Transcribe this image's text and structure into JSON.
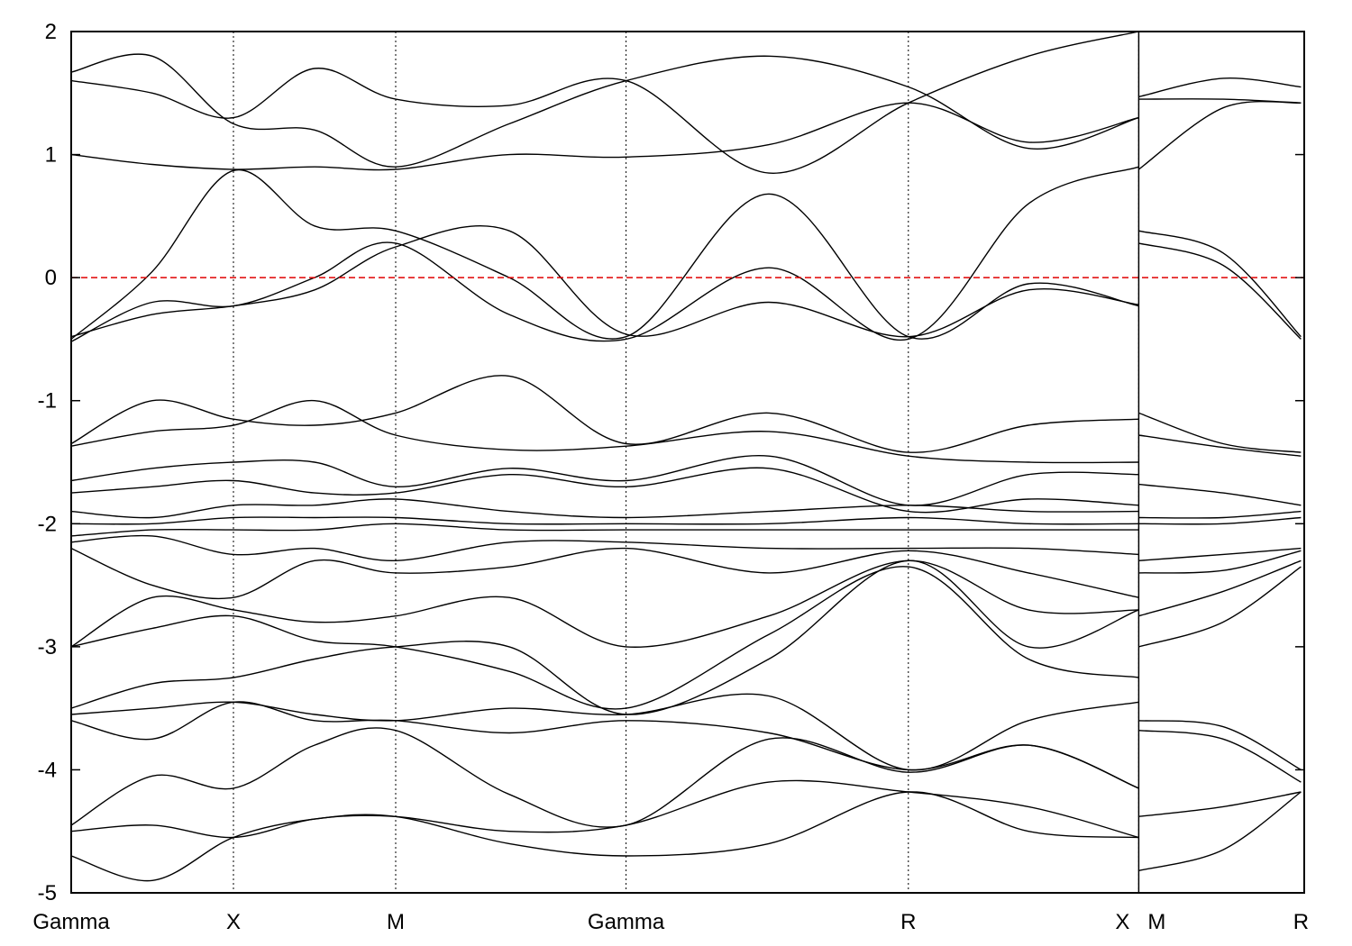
{
  "chart_data": {
    "type": "line",
    "title": "",
    "xlabel": "",
    "ylabel": "",
    "ylim": [
      -5,
      2
    ],
    "yticks": [
      2,
      1,
      0,
      -1,
      -2,
      -3,
      -4,
      -5
    ],
    "ytick_labels": [
      "2",
      "1",
      "0",
      "-1",
      "-2",
      "-3",
      "-4",
      "-5"
    ],
    "xlim": [
      0,
      7.6
    ],
    "k_points": [
      {
        "label": "Gamma",
        "x": 0
      },
      {
        "label": "X",
        "x": 1.0
      },
      {
        "label": "M",
        "x": 2.0
      },
      {
        "label": "Gamma",
        "x": 3.42
      },
      {
        "label": "R",
        "x": 5.16
      },
      {
        "label": "X",
        "x": 6.58
      },
      {
        "label": "M",
        "x": 6.58
      },
      {
        "label": "R",
        "x": 7.58
      }
    ],
    "segment_break_x": 6.58,
    "grid": "vertical dotted lines at high-symmetry points",
    "fermi_level": {
      "y": 0,
      "color": "#e00000",
      "style": "dashed"
    },
    "line_color": "#000000",
    "series": [
      {
        "x": [
          0,
          0.5,
          1.0,
          1.5,
          2.0,
          2.7,
          3.42,
          4.3,
          5.16,
          5.9,
          6.58
        ],
        "y": [
          -0.5,
          0.05,
          0.87,
          0.42,
          0.38,
          0.0,
          -0.48,
          0.68,
          -0.48,
          -0.05,
          -0.23
        ]
      },
      {
        "x": [
          0,
          0.5,
          1.0,
          1.5,
          2.0,
          2.7,
          3.42,
          4.3,
          5.16,
          5.9,
          6.58
        ],
        "y": [
          -0.52,
          -0.2,
          -0.23,
          0.0,
          0.28,
          -0.3,
          -0.5,
          0.08,
          -0.5,
          0.6,
          0.9
        ]
      },
      {
        "x": [
          0,
          0.5,
          1.0,
          1.5,
          2.0,
          2.7,
          3.42,
          4.3,
          5.16,
          5.9,
          6.58
        ],
        "y": [
          -0.48,
          -0.3,
          -0.23,
          -0.1,
          0.25,
          0.38,
          -0.46,
          -0.2,
          -0.48,
          -0.1,
          -0.22
        ]
      },
      {
        "x": [
          0,
          0.5,
          1.0,
          1.5,
          2.0,
          2.7,
          3.42,
          4.3,
          5.16,
          5.9,
          6.58
        ],
        "y": [
          1.0,
          0.92,
          0.88,
          0.9,
          0.88,
          1.0,
          0.98,
          1.08,
          1.42,
          1.1,
          1.3
        ]
      },
      {
        "x": [
          0,
          0.5,
          1.0,
          1.5,
          2.0,
          2.7,
          3.42,
          4.3,
          5.16,
          5.9,
          6.58
        ],
        "y": [
          1.6,
          1.5,
          1.3,
          1.7,
          1.45,
          1.4,
          1.6,
          0.85,
          1.42,
          1.8,
          2.0
        ]
      },
      {
        "x": [
          0,
          0.5,
          1.0,
          1.5,
          2.0,
          2.7,
          3.42,
          4.3,
          5.16,
          5.9,
          6.58
        ],
        "y": [
          1.67,
          1.8,
          1.25,
          1.2,
          0.9,
          1.25,
          1.6,
          1.8,
          1.55,
          1.05,
          1.3
        ]
      },
      {
        "x": [
          0,
          0.5,
          1.0,
          1.5,
          2.0,
          2.7,
          3.42,
          4.3,
          5.16,
          5.9,
          6.58
        ],
        "y": [
          -1.35,
          -1.0,
          -1.15,
          -1.2,
          -1.1,
          -0.8,
          -1.35,
          -1.1,
          -1.42,
          -1.2,
          -1.15
        ]
      },
      {
        "x": [
          0,
          0.5,
          1.0,
          1.5,
          2.0,
          2.7,
          3.42,
          4.3,
          5.16,
          5.9,
          6.58
        ],
        "y": [
          -1.37,
          -1.25,
          -1.2,
          -1.0,
          -1.28,
          -1.4,
          -1.37,
          -1.25,
          -1.45,
          -1.5,
          -1.5
        ]
      },
      {
        "x": [
          0,
          0.5,
          1.0,
          1.5,
          2.0,
          2.7,
          3.42,
          4.3,
          5.16,
          5.9,
          6.58
        ],
        "y": [
          -1.65,
          -1.55,
          -1.5,
          -1.5,
          -1.7,
          -1.55,
          -1.65,
          -1.45,
          -1.85,
          -1.6,
          -1.6
        ]
      },
      {
        "x": [
          0,
          0.5,
          1.0,
          1.5,
          2.0,
          2.7,
          3.42,
          4.3,
          5.16,
          5.9,
          6.58
        ],
        "y": [
          -1.75,
          -1.7,
          -1.65,
          -1.75,
          -1.75,
          -1.6,
          -1.7,
          -1.55,
          -1.9,
          -1.8,
          -1.85
        ]
      },
      {
        "x": [
          0,
          0.5,
          1.0,
          1.5,
          2.0,
          2.7,
          3.42,
          4.3,
          5.16,
          5.9,
          6.58
        ],
        "y": [
          -1.9,
          -1.95,
          -1.85,
          -1.85,
          -1.8,
          -1.9,
          -1.95,
          -1.9,
          -1.85,
          -1.9,
          -1.9
        ]
      },
      {
        "x": [
          0,
          0.5,
          1.0,
          1.5,
          2.0,
          2.7,
          3.42,
          4.3,
          5.16,
          5.9,
          6.58
        ],
        "y": [
          -2.0,
          -2.0,
          -1.95,
          -1.95,
          -1.95,
          -2.0,
          -2.0,
          -2.0,
          -1.95,
          -2.0,
          -2.0
        ]
      },
      {
        "x": [
          0,
          0.5,
          1.0,
          1.5,
          2.0,
          2.7,
          3.42,
          4.3,
          5.16,
          5.9,
          6.58
        ],
        "y": [
          -2.1,
          -2.05,
          -2.05,
          -2.05,
          -2.0,
          -2.05,
          -2.05,
          -2.05,
          -2.05,
          -2.05,
          -2.05
        ]
      },
      {
        "x": [
          0,
          0.5,
          1.0,
          1.5,
          2.0,
          2.7,
          3.42,
          4.3,
          5.16,
          5.9,
          6.58
        ],
        "y": [
          -2.15,
          -2.1,
          -2.25,
          -2.2,
          -2.3,
          -2.15,
          -2.15,
          -2.2,
          -2.2,
          -2.2,
          -2.25
        ]
      },
      {
        "x": [
          0,
          0.5,
          1.0,
          1.5,
          2.0,
          2.7,
          3.42,
          4.3,
          5.16,
          5.9,
          6.58
        ],
        "y": [
          -2.2,
          -2.5,
          -2.6,
          -2.3,
          -2.4,
          -2.35,
          -2.2,
          -2.4,
          -2.22,
          -2.4,
          -2.6
        ]
      },
      {
        "x": [
          0,
          0.5,
          1.0,
          1.5,
          2.0,
          2.7,
          3.42,
          4.3,
          5.16,
          5.9,
          6.58
        ],
        "y": [
          -3.0,
          -2.6,
          -2.7,
          -2.8,
          -2.75,
          -2.6,
          -3.0,
          -2.75,
          -2.3,
          -2.7,
          -2.7
        ]
      },
      {
        "x": [
          0,
          0.5,
          1.0,
          1.5,
          2.0,
          2.7,
          3.42,
          4.3,
          5.16,
          5.9,
          6.58
        ],
        "y": [
          -3.0,
          -2.85,
          -2.75,
          -2.95,
          -3.0,
          -3.2,
          -3.5,
          -2.9,
          -2.35,
          -3.1,
          -3.25
        ]
      },
      {
        "x": [
          0,
          0.5,
          1.0,
          1.5,
          2.0,
          2.7,
          3.42,
          4.3,
          5.16,
          5.9,
          6.58
        ],
        "y": [
          -3.5,
          -3.3,
          -3.25,
          -3.1,
          -3.0,
          -3.0,
          -3.55,
          -3.1,
          -2.3,
          -3.0,
          -2.7
        ]
      },
      {
        "x": [
          0,
          0.5,
          1.0,
          1.5,
          2.0,
          2.7,
          3.42,
          4.3,
          5.16,
          5.9,
          6.58
        ],
        "y": [
          -3.55,
          -3.5,
          -3.45,
          -3.55,
          -3.6,
          -3.5,
          -3.55,
          -3.4,
          -4.0,
          -3.6,
          -3.45
        ]
      },
      {
        "x": [
          0,
          0.5,
          1.0,
          1.5,
          2.0,
          2.7,
          3.42,
          4.3,
          5.16,
          5.9,
          6.58
        ],
        "y": [
          -3.6,
          -3.75,
          -3.45,
          -3.6,
          -3.6,
          -3.7,
          -3.6,
          -3.7,
          -4.0,
          -3.8,
          -4.15
        ]
      },
      {
        "x": [
          0,
          0.5,
          1.0,
          1.5,
          2.0,
          2.7,
          3.42,
          4.3,
          5.16,
          5.9,
          6.58
        ],
        "y": [
          -4.45,
          -4.05,
          -4.15,
          -3.8,
          -3.68,
          -4.2,
          -4.45,
          -3.75,
          -4.02,
          -3.8,
          -4.15
        ]
      },
      {
        "x": [
          0,
          0.5,
          1.0,
          1.5,
          2.0,
          2.7,
          3.42,
          4.3,
          5.16,
          5.9,
          6.58
        ],
        "y": [
          -4.5,
          -4.45,
          -4.55,
          -4.4,
          -4.38,
          -4.5,
          -4.45,
          -4.1,
          -4.18,
          -4.3,
          -4.55
        ]
      },
      {
        "x": [
          0,
          0.5,
          1.0,
          1.5,
          2.0,
          2.7,
          3.42,
          4.3,
          5.16,
          5.9,
          6.58
        ],
        "y": [
          -4.7,
          -4.9,
          -4.55,
          -4.4,
          -4.38,
          -4.6,
          -4.7,
          -4.6,
          -4.18,
          -4.5,
          -4.55
        ]
      },
      {
        "x": [
          6.58,
          7.1,
          7.58
        ],
        "y": [
          0.38,
          0.2,
          -0.48
        ]
      },
      {
        "x": [
          6.58,
          7.1,
          7.58
        ],
        "y": [
          0.28,
          0.1,
          -0.5
        ]
      },
      {
        "x": [
          6.58,
          7.1,
          7.58
        ],
        "y": [
          0.88,
          1.38,
          1.42
        ]
      },
      {
        "x": [
          6.58,
          7.1,
          7.58
        ],
        "y": [
          1.45,
          1.45,
          1.42
        ]
      },
      {
        "x": [
          6.58,
          7.1,
          7.58
        ],
        "y": [
          1.47,
          1.62,
          1.55
        ]
      },
      {
        "x": [
          6.58,
          7.1,
          7.58
        ],
        "y": [
          -1.1,
          -1.35,
          -1.42
        ]
      },
      {
        "x": [
          6.58,
          7.1,
          7.58
        ],
        "y": [
          -1.28,
          -1.38,
          -1.45
        ]
      },
      {
        "x": [
          6.58,
          7.1,
          7.58
        ],
        "y": [
          -1.68,
          -1.75,
          -1.85
        ]
      },
      {
        "x": [
          6.58,
          7.1,
          7.58
        ],
        "y": [
          -1.95,
          -1.95,
          -1.9
        ]
      },
      {
        "x": [
          6.58,
          7.1,
          7.58
        ],
        "y": [
          -2.0,
          -2.0,
          -1.95
        ]
      },
      {
        "x": [
          6.58,
          7.1,
          7.58
        ],
        "y": [
          -2.3,
          -2.25,
          -2.2
        ]
      },
      {
        "x": [
          6.58,
          7.1,
          7.58
        ],
        "y": [
          -2.4,
          -2.38,
          -2.22
        ]
      },
      {
        "x": [
          6.58,
          7.1,
          7.58
        ],
        "y": [
          -2.75,
          -2.55,
          -2.3
        ]
      },
      {
        "x": [
          6.58,
          7.1,
          7.58
        ],
        "y": [
          -3.0,
          -2.8,
          -2.35
        ]
      },
      {
        "x": [
          6.58,
          7.1,
          7.58
        ],
        "y": [
          -3.6,
          -3.65,
          -4.0
        ]
      },
      {
        "x": [
          6.58,
          7.1,
          7.58
        ],
        "y": [
          -3.68,
          -3.75,
          -4.1
        ]
      },
      {
        "x": [
          6.58,
          7.1,
          7.58
        ],
        "y": [
          -4.38,
          -4.3,
          -4.18
        ]
      },
      {
        "x": [
          6.58,
          7.1,
          7.58
        ],
        "y": [
          -4.82,
          -4.65,
          -4.18
        ]
      }
    ]
  }
}
